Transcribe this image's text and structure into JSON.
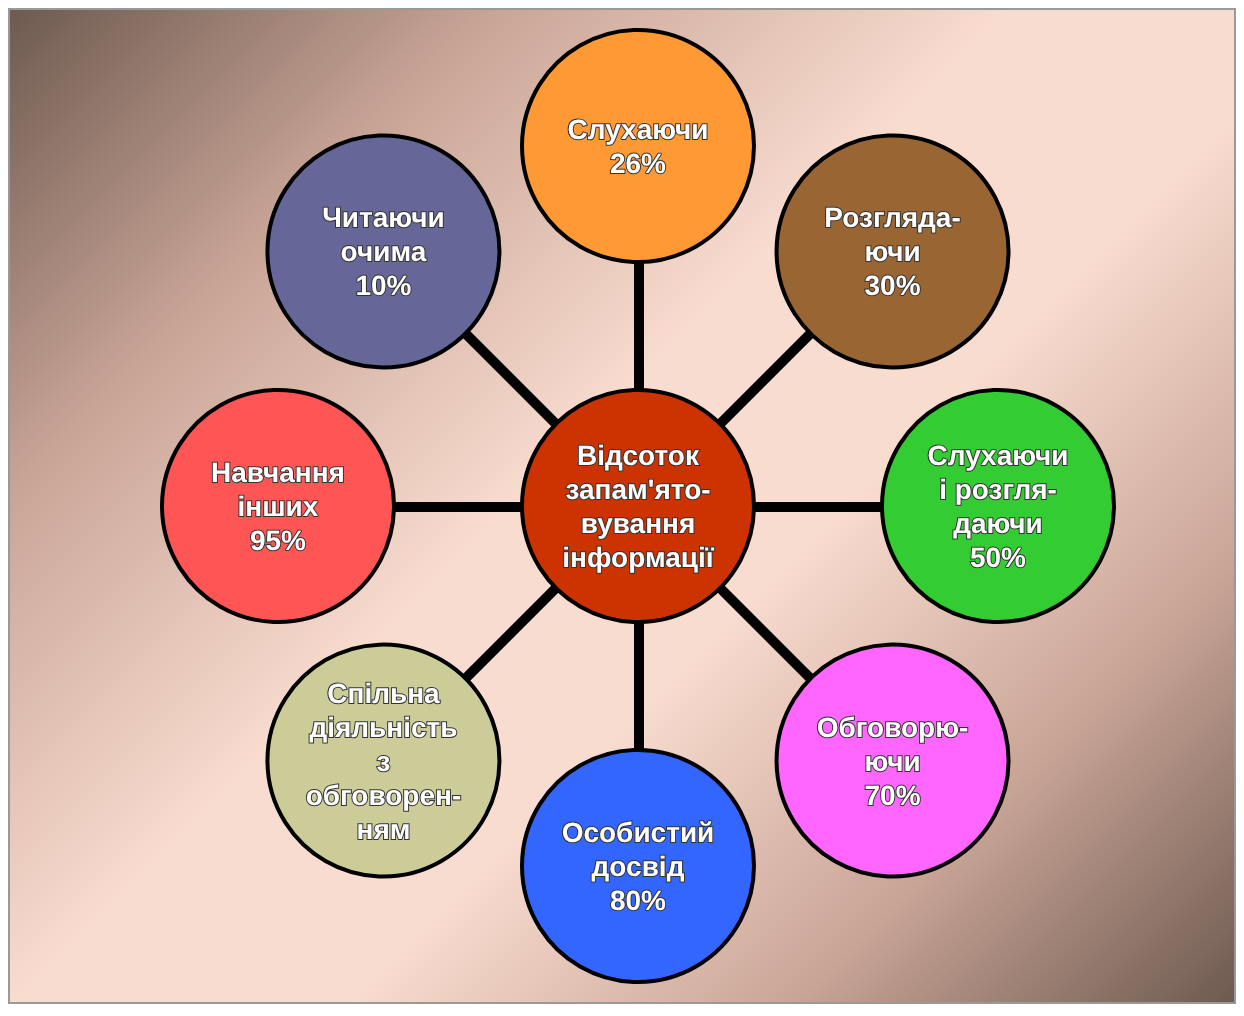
{
  "chart_data": {
    "type": "other",
    "title": "Відсоток\nзапам'ято-\nвування\nінформації",
    "categories": [
      "Слухаючи",
      "Розгляда-\nючи",
      "Слухаючи\nі розгля-\nдаючи",
      "Обговорю-\nючи",
      "Особистий\nдосвід",
      "Спільна\nдіяльність\nз\nобговорен-\nням",
      "Навчання\nінших",
      "Читаючи\nочима"
    ],
    "values": [
      26,
      30,
      50,
      70,
      80,
      null,
      95,
      10
    ],
    "value_labels": [
      "26%",
      "30%",
      "50%",
      "70%",
      "80%",
      null,
      "95%",
      "10%"
    ],
    "colors": [
      "#ff9933",
      "#996633",
      "#33cc33",
      "#ff66ff",
      "#3366ff",
      "#cccc99",
      "#ff5555",
      "#666699"
    ]
  }
}
